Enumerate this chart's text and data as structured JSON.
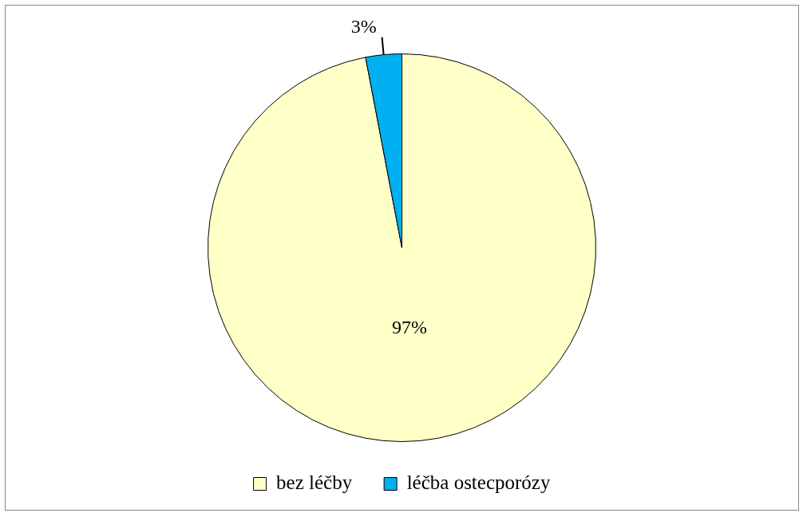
{
  "chart_data": {
    "type": "pie",
    "categories": [
      "bez léčby",
      "léčba ostecporózy"
    ],
    "values": [
      97,
      3
    ],
    "colors": [
      "#ffffc8",
      "#00b0f0"
    ],
    "value_labels": [
      "97%",
      "3%"
    ],
    "legend": "bottom"
  }
}
